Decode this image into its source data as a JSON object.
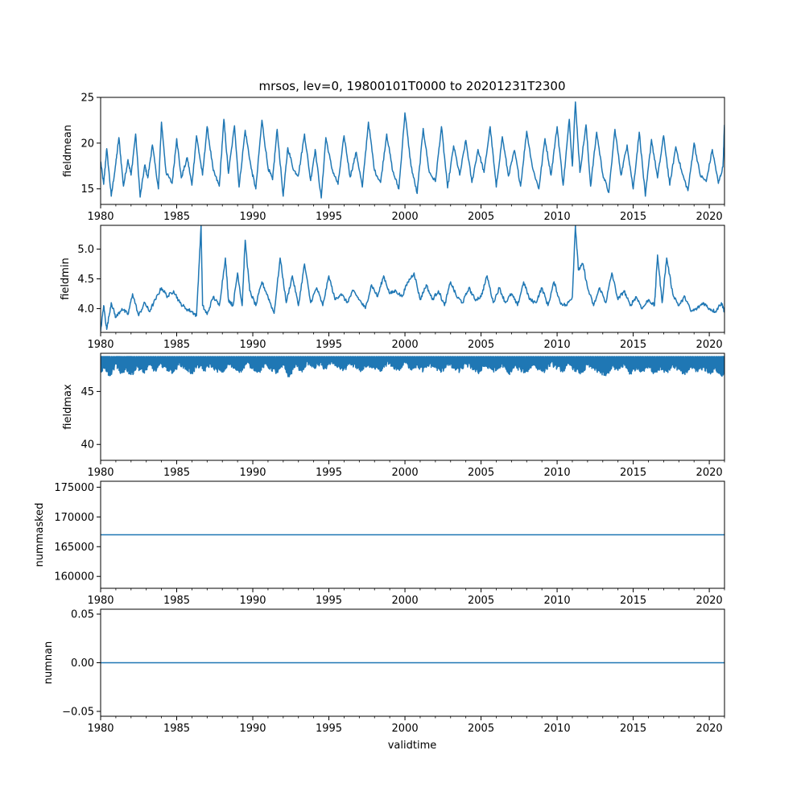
{
  "figure": {
    "title": "mrsos, lev=0, 19800101T0000 to 20201231T2300",
    "xlabel": "validtime",
    "line_color": "#1f77b4"
  },
  "chart_data": [
    {
      "type": "line",
      "ylabel": "fieldmean",
      "x_range": [
        1980.0,
        2021.0
      ],
      "ylim": [
        13.3,
        25.0
      ],
      "xticks": [
        1980,
        1985,
        1990,
        1995,
        2000,
        2005,
        2010,
        2015,
        2020
      ],
      "xtick_labels": [
        "1980",
        "1985",
        "1990",
        "1995",
        "2000",
        "2005",
        "2010",
        "2015",
        "2020"
      ],
      "yticks": [
        15,
        20,
        25
      ],
      "ytick_labels": [
        "15",
        "20",
        "25"
      ],
      "series": [
        {
          "x": [
            1980.0,
            1980.2,
            1980.4,
            1980.7,
            1981.0,
            1981.2,
            1981.5,
            1981.8,
            1982.0,
            1982.3,
            1982.6,
            1982.9,
            1983.1,
            1983.4,
            1983.8,
            1984.0,
            1984.3,
            1984.7,
            1985.0,
            1985.3,
            1985.7,
            1986.0,
            1986.3,
            1986.7,
            1987.0,
            1987.4,
            1987.8,
            1988.1,
            1988.4,
            1988.8,
            1989.1,
            1989.5,
            1989.9,
            1990.2,
            1990.6,
            1991.0,
            1991.3,
            1991.6,
            1992.0,
            1992.3,
            1992.7,
            1993.0,
            1993.4,
            1993.8,
            1994.1,
            1994.5,
            1994.8,
            1995.2,
            1995.6,
            1996.0,
            1996.4,
            1996.8,
            1997.2,
            1997.6,
            1998.0,
            1998.4,
            1998.8,
            1999.2,
            1999.6,
            2000.0,
            2000.4,
            2000.8,
            2001.2,
            2001.6,
            2002.0,
            2002.4,
            2002.8,
            2003.2,
            2003.6,
            2004.0,
            2004.4,
            2004.8,
            2005.2,
            2005.6,
            2006.0,
            2006.4,
            2006.8,
            2007.2,
            2007.6,
            2008.0,
            2008.4,
            2008.8,
            2009.2,
            2009.6,
            2010.0,
            2010.4,
            2010.8,
            2011.0,
            2011.2,
            2011.5,
            2011.9,
            2012.2,
            2012.6,
            2013.0,
            2013.4,
            2013.8,
            2014.2,
            2014.6,
            2015.0,
            2015.4,
            2015.8,
            2016.2,
            2016.6,
            2017.0,
            2017.4,
            2017.8,
            2018.2,
            2018.6,
            2019.0,
            2019.4,
            2019.8,
            2020.2,
            2020.6,
            2020.9,
            2021.0
          ],
          "y": [
            18.0,
            15.5,
            19.4,
            14.2,
            17.8,
            20.6,
            15.3,
            18.2,
            16.5,
            21.0,
            14.1,
            17.6,
            16.2,
            19.8,
            15.0,
            22.3,
            16.8,
            15.6,
            20.5,
            16.2,
            18.4,
            15.4,
            20.8,
            16.5,
            21.8,
            17.0,
            15.3,
            22.6,
            16.7,
            21.9,
            15.2,
            21.4,
            17.2,
            15.0,
            22.5,
            17.3,
            16.0,
            21.5,
            14.2,
            19.5,
            17.0,
            16.5,
            21.0,
            15.9,
            19.3,
            14.0,
            20.6,
            17.2,
            15.5,
            20.8,
            16.3,
            19.0,
            15.2,
            22.3,
            17.0,
            15.7,
            21.0,
            16.9,
            15.0,
            23.3,
            17.5,
            14.5,
            21.6,
            16.8,
            15.8,
            21.8,
            15.1,
            19.7,
            16.5,
            20.3,
            15.7,
            19.3,
            16.8,
            21.8,
            15.2,
            20.7,
            16.4,
            19.2,
            15.3,
            21.3,
            17.2,
            15.0,
            20.5,
            16.5,
            21.8,
            15.4,
            22.6,
            17.5,
            24.5,
            16.8,
            22.0,
            15.3,
            21.2,
            16.6,
            14.6,
            21.5,
            16.5,
            19.8,
            15.0,
            21.2,
            14.2,
            20.4,
            16.2,
            20.8,
            15.4,
            19.6,
            16.8,
            14.8,
            20.0,
            16.5,
            15.8,
            19.3,
            15.6,
            17.4,
            22.0
          ]
        }
      ]
    },
    {
      "type": "line",
      "ylabel": "fieldmin",
      "x_range": [
        1980.0,
        2021.0
      ],
      "ylim": [
        3.6,
        5.4
      ],
      "xticks": [
        1980,
        1985,
        1990,
        1995,
        2000,
        2005,
        2010,
        2015,
        2020
      ],
      "xtick_labels": [
        "1980",
        "1985",
        "1990",
        "1995",
        "2000",
        "2005",
        "2010",
        "2015",
        "2020"
      ],
      "yticks": [
        4.0,
        4.5,
        5.0
      ],
      "ytick_labels": [
        "4.0",
        "4.5",
        "5.0"
      ],
      "series": [
        {
          "x": [
            1980.0,
            1980.2,
            1980.4,
            1980.7,
            1981.0,
            1981.4,
            1981.8,
            1982.1,
            1982.5,
            1982.9,
            1983.2,
            1983.6,
            1984.0,
            1984.4,
            1984.8,
            1985.2,
            1985.6,
            1986.0,
            1986.3,
            1986.6,
            1986.7,
            1987.0,
            1987.4,
            1987.8,
            1988.2,
            1988.4,
            1988.7,
            1989.0,
            1989.3,
            1989.5,
            1989.8,
            1990.2,
            1990.6,
            1991.0,
            1991.4,
            1991.8,
            1992.2,
            1992.6,
            1993.0,
            1993.4,
            1993.8,
            1994.2,
            1994.6,
            1995.0,
            1995.4,
            1995.8,
            1996.2,
            1996.6,
            1997.0,
            1997.4,
            1997.8,
            1998.2,
            1998.6,
            1999.0,
            1999.4,
            1999.8,
            2000.2,
            2000.6,
            2001.0,
            2001.4,
            2001.8,
            2002.2,
            2002.6,
            2003.0,
            2003.4,
            2003.8,
            2004.2,
            2004.6,
            2005.0,
            2005.4,
            2005.8,
            2006.2,
            2006.6,
            2007.0,
            2007.4,
            2007.8,
            2008.2,
            2008.6,
            2009.0,
            2009.4,
            2009.8,
            2010.2,
            2010.6,
            2011.0,
            2011.2,
            2011.4,
            2011.7,
            2012.0,
            2012.4,
            2012.8,
            2013.2,
            2013.6,
            2014.0,
            2014.4,
            2014.8,
            2015.2,
            2015.6,
            2016.0,
            2016.4,
            2016.6,
            2016.9,
            2017.2,
            2017.6,
            2018.0,
            2018.4,
            2018.8,
            2019.2,
            2019.6,
            2020.0,
            2020.4,
            2020.8,
            2021.0
          ],
          "y": [
            3.62,
            4.05,
            3.65,
            4.1,
            3.85,
            4.0,
            3.9,
            4.25,
            3.88,
            4.1,
            3.95,
            4.15,
            4.35,
            4.2,
            4.3,
            4.1,
            4.0,
            3.95,
            3.88,
            5.4,
            4.05,
            3.9,
            4.2,
            4.05,
            4.85,
            4.15,
            4.05,
            4.6,
            4.05,
            5.15,
            4.3,
            4.05,
            4.45,
            4.2,
            3.92,
            4.85,
            4.1,
            4.55,
            4.05,
            4.75,
            4.1,
            4.35,
            4.05,
            4.55,
            4.15,
            4.25,
            4.1,
            4.3,
            4.15,
            4.0,
            4.4,
            4.2,
            4.55,
            4.25,
            4.3,
            4.2,
            4.45,
            4.6,
            4.15,
            4.4,
            4.15,
            4.3,
            4.05,
            4.45,
            4.2,
            4.1,
            4.35,
            4.15,
            4.2,
            4.55,
            4.1,
            4.35,
            4.1,
            4.25,
            4.05,
            4.45,
            4.15,
            4.1,
            4.35,
            4.05,
            4.45,
            4.1,
            4.05,
            4.2,
            5.4,
            4.65,
            4.75,
            4.35,
            4.05,
            4.35,
            4.1,
            4.6,
            4.15,
            4.3,
            4.05,
            4.2,
            4.0,
            4.15,
            4.05,
            4.9,
            4.1,
            4.85,
            4.25,
            4.05,
            4.2,
            3.95,
            4.0,
            4.1,
            4.0,
            3.95,
            4.1,
            3.95
          ]
        }
      ]
    },
    {
      "type": "line",
      "ylabel": "fieldmax",
      "x_range": [
        1980.0,
        2021.0
      ],
      "ylim": [
        38.5,
        48.6
      ],
      "xticks": [
        1980,
        1985,
        1990,
        1995,
        2000,
        2005,
        2010,
        2015,
        2020
      ],
      "xtick_labels": [
        "1980",
        "1985",
        "1990",
        "1995",
        "2000",
        "2005",
        "2010",
        "2015",
        "2020"
      ],
      "yticks": [
        40,
        45
      ],
      "ytick_labels": [
        "40",
        "45"
      ],
      "band_top": 48.3,
      "series": [
        {
          "x": [
            1980.0,
            1980.3,
            1980.6,
            1981.0,
            1981.3,
            1981.7,
            1982.0,
            1982.4,
            1982.8,
            1983.2,
            1983.6,
            1984.0,
            1984.4,
            1984.8,
            1985.2,
            1985.6,
            1986.0,
            1986.4,
            1986.8,
            1987.2,
            1987.6,
            1988.0,
            1988.4,
            1988.8,
            1989.2,
            1989.6,
            1990.0,
            1990.4,
            1990.8,
            1991.2,
            1991.6,
            1992.0,
            1992.4,
            1992.8,
            1993.2,
            1993.6,
            1994.0,
            1994.4,
            1994.8,
            1995.2,
            1995.6,
            1996.0,
            1996.4,
            1996.8,
            1997.2,
            1997.6,
            1998.0,
            1998.4,
            1998.8,
            1999.2,
            1999.6,
            2000.0,
            2000.4,
            2000.8,
            2001.2,
            2001.6,
            2002.0,
            2002.4,
            2002.8,
            2003.2,
            2003.6,
            2004.0,
            2004.4,
            2004.8,
            2005.2,
            2005.6,
            2006.0,
            2006.4,
            2006.8,
            2007.2,
            2007.6,
            2008.0,
            2008.4,
            2008.8,
            2009.2,
            2009.6,
            2010.0,
            2010.4,
            2010.8,
            2011.2,
            2011.6,
            2012.0,
            2012.4,
            2012.8,
            2013.2,
            2013.6,
            2014.0,
            2014.4,
            2014.8,
            2015.2,
            2015.6,
            2016.0,
            2016.4,
            2016.8,
            2017.2,
            2017.6,
            2018.0,
            2018.4,
            2018.8,
            2019.2,
            2019.6,
            2020.0,
            2020.4,
            2020.8,
            2021.0
          ],
          "y": [
            46.8,
            47.3,
            46.5,
            47.6,
            46.7,
            47.2,
            46.6,
            47.4,
            46.8,
            47.5,
            47.0,
            47.6,
            47.1,
            46.9,
            47.7,
            47.2,
            46.8,
            47.5,
            47.0,
            47.6,
            47.1,
            46.9,
            47.6,
            47.2,
            47.0,
            47.7,
            47.3,
            46.9,
            47.6,
            47.2,
            46.8,
            47.5,
            46.4,
            47.6,
            47.0,
            47.8,
            47.3,
            47.6,
            47.2,
            47.8,
            47.4,
            47.1,
            47.7,
            47.3,
            47.0,
            47.6,
            47.2,
            46.9,
            47.7,
            47.4,
            47.1,
            47.8,
            47.2,
            47.5,
            47.0,
            47.6,
            47.3,
            46.9,
            47.7,
            47.2,
            47.0,
            47.6,
            47.3,
            46.8,
            47.5,
            47.2,
            47.0,
            47.6,
            46.7,
            47.4,
            47.1,
            46.9,
            47.6,
            47.2,
            47.0,
            47.7,
            47.3,
            47.0,
            47.6,
            47.1,
            46.8,
            47.5,
            47.2,
            46.9,
            46.5,
            47.4,
            47.0,
            47.6,
            46.7,
            47.3,
            47.0,
            47.5,
            46.8,
            47.3,
            46.9,
            47.5,
            47.1,
            46.6,
            47.4,
            47.0,
            47.3,
            46.8,
            47.2,
            46.5,
            47.0
          ]
        }
      ]
    },
    {
      "type": "line",
      "ylabel": "nummasked",
      "x_range": [
        1980.0,
        2021.0
      ],
      "ylim": [
        158000,
        176000
      ],
      "xticks": [
        1980,
        1985,
        1990,
        1995,
        2000,
        2005,
        2010,
        2015,
        2020
      ],
      "xtick_labels": [
        "1980",
        "1985",
        "1990",
        "1995",
        "2000",
        "2005",
        "2010",
        "2015",
        "2020"
      ],
      "yticks": [
        160000,
        165000,
        170000,
        175000
      ],
      "ytick_labels": [
        "160000",
        "165000",
        "170000",
        "175000"
      ],
      "series": [
        {
          "x": [
            1980.0,
            2021.0
          ],
          "y": [
            167000,
            167000
          ]
        }
      ]
    },
    {
      "type": "line",
      "ylabel": "numnan",
      "x_range": [
        1980.0,
        2021.0
      ],
      "ylim": [
        -0.055,
        0.055
      ],
      "xticks": [
        1980,
        1985,
        1990,
        1995,
        2000,
        2005,
        2010,
        2015,
        2020
      ],
      "xtick_labels": [
        "1980",
        "1985",
        "1990",
        "1995",
        "2000",
        "2005",
        "2010",
        "2015",
        "2020"
      ],
      "yticks": [
        -0.05,
        0.0,
        0.05
      ],
      "ytick_labels": [
        "−0.05",
        "0.00",
        "0.05"
      ],
      "series": [
        {
          "x": [
            1980.0,
            2021.0
          ],
          "y": [
            0.0,
            0.0
          ]
        }
      ]
    }
  ]
}
